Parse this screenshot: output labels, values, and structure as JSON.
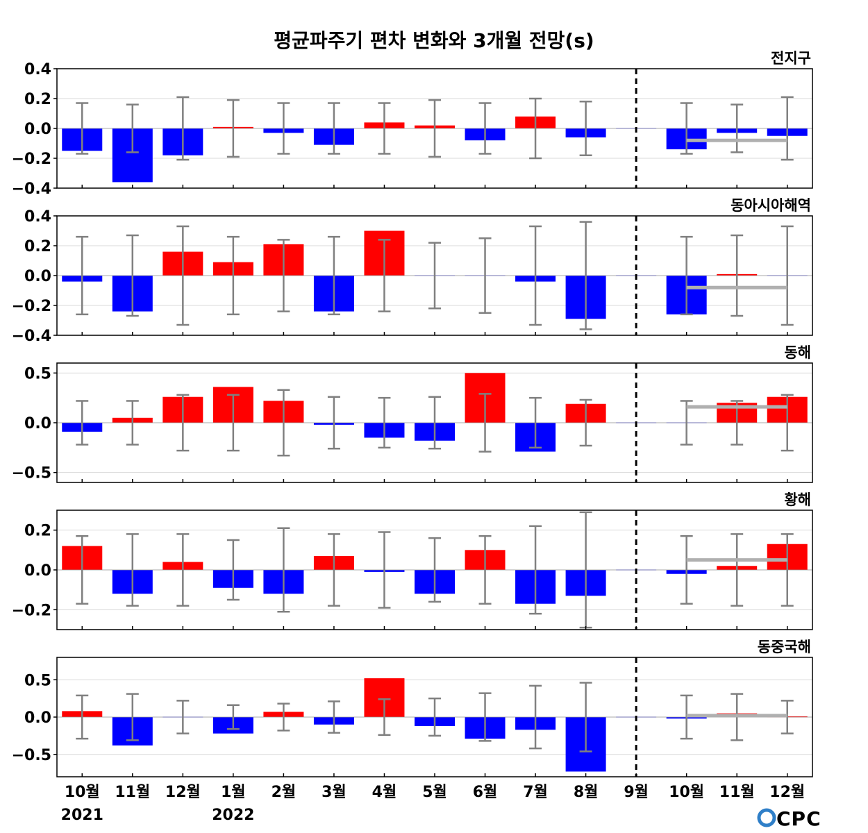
{
  "chart_data": {
    "type": "bar",
    "title": "평균파주기 편차 변화와 3개월 전망(s)",
    "categories": [
      "10월",
      "11월",
      "12월",
      "1월",
      "2월",
      "3월",
      "4월",
      "5월",
      "6월",
      "7월",
      "8월",
      "9월",
      "10월",
      "11월",
      "12월"
    ],
    "year_labels": [
      {
        "category_index": 0,
        "label": "2021"
      },
      {
        "category_index": 3,
        "label": "2022"
      }
    ],
    "forecast_divider_after_index": 11,
    "grid": true,
    "colors": {
      "positive": "#ff0000",
      "negative": "#0000ff",
      "error_bar": "#808080",
      "forecast_line": "#b0b0b0",
      "divider": "#000000",
      "logo": "#2f7fc8"
    },
    "logo": "CPC",
    "panels": [
      {
        "name": "전지구",
        "ylim": [
          -0.4,
          0.4
        ],
        "yticks": [
          -0.4,
          -0.2,
          0.0,
          0.2,
          0.4
        ],
        "ytick_labels": [
          "−0.4",
          "−0.2",
          "0.0",
          "0.2",
          "0.4"
        ],
        "values": [
          -0.15,
          -0.36,
          -0.18,
          0.01,
          -0.03,
          -0.11,
          0.04,
          0.02,
          -0.08,
          0.08,
          -0.06,
          0.0,
          -0.14,
          -0.03,
          -0.05
        ],
        "error": [
          0.17,
          0.16,
          0.21,
          0.19,
          0.17,
          0.17,
          0.17,
          0.19,
          0.17,
          0.2,
          0.18,
          null,
          0.17,
          0.16,
          0.21
        ],
        "forecast_level": -0.08
      },
      {
        "name": "동아시아해역",
        "ylim": [
          -0.4,
          0.4
        ],
        "yticks": [
          -0.4,
          -0.2,
          0.0,
          0.2,
          0.4
        ],
        "ytick_labels": [
          "−0.4",
          "−0.2",
          "0.0",
          "0.2",
          "0.4"
        ],
        "values": [
          -0.04,
          -0.24,
          0.16,
          0.09,
          0.21,
          -0.24,
          0.3,
          0.0,
          0.0,
          -0.04,
          -0.29,
          0.0,
          -0.26,
          0.01,
          0.0
        ],
        "error": [
          0.26,
          0.27,
          0.33,
          0.26,
          0.24,
          0.26,
          0.24,
          0.22,
          0.25,
          0.33,
          0.36,
          null,
          0.26,
          0.27,
          0.33
        ],
        "forecast_level": -0.08
      },
      {
        "name": "동해",
        "ylim": [
          -0.6,
          0.6
        ],
        "yticks": [
          -0.5,
          0.0,
          0.5
        ],
        "ytick_labels": [
          "−0.5",
          "0.0",
          "0.5"
        ],
        "values": [
          -0.09,
          0.05,
          0.26,
          0.36,
          0.22,
          -0.02,
          -0.15,
          -0.18,
          0.5,
          -0.29,
          0.19,
          0.0,
          0.0,
          0.2,
          0.26
        ],
        "error": [
          0.22,
          0.22,
          0.28,
          0.28,
          0.33,
          0.26,
          0.25,
          0.26,
          0.29,
          0.25,
          0.23,
          null,
          0.22,
          0.22,
          0.28
        ],
        "forecast_level": 0.16
      },
      {
        "name": "황해",
        "ylim": [
          -0.3,
          0.3
        ],
        "yticks": [
          -0.2,
          0.0,
          0.2
        ],
        "ytick_labels": [
          "−0.2",
          "0.0",
          "0.2"
        ],
        "values": [
          0.12,
          -0.12,
          0.04,
          -0.09,
          -0.12,
          0.07,
          -0.01,
          -0.12,
          0.1,
          -0.17,
          -0.13,
          0.0,
          -0.02,
          0.02,
          0.13
        ],
        "error": [
          0.17,
          0.18,
          0.18,
          0.15,
          0.21,
          0.18,
          0.19,
          0.16,
          0.17,
          0.22,
          0.29,
          null,
          0.17,
          0.18,
          0.18
        ],
        "forecast_level": 0.05
      },
      {
        "name": "동중국해",
        "ylim": [
          -0.8,
          0.8
        ],
        "yticks": [
          -0.5,
          0.0,
          0.5
        ],
        "ytick_labels": [
          "−0.5",
          "0.0",
          "0.5"
        ],
        "values": [
          0.08,
          -0.38,
          0.0,
          -0.22,
          0.07,
          -0.1,
          0.52,
          -0.12,
          -0.29,
          -0.17,
          -0.73,
          0.0,
          -0.02,
          0.05,
          0.01
        ],
        "error": [
          0.29,
          0.31,
          0.22,
          0.16,
          0.18,
          0.21,
          0.24,
          0.25,
          0.32,
          0.42,
          0.46,
          null,
          0.29,
          0.31,
          0.22
        ],
        "forecast_level": 0.02
      }
    ]
  }
}
